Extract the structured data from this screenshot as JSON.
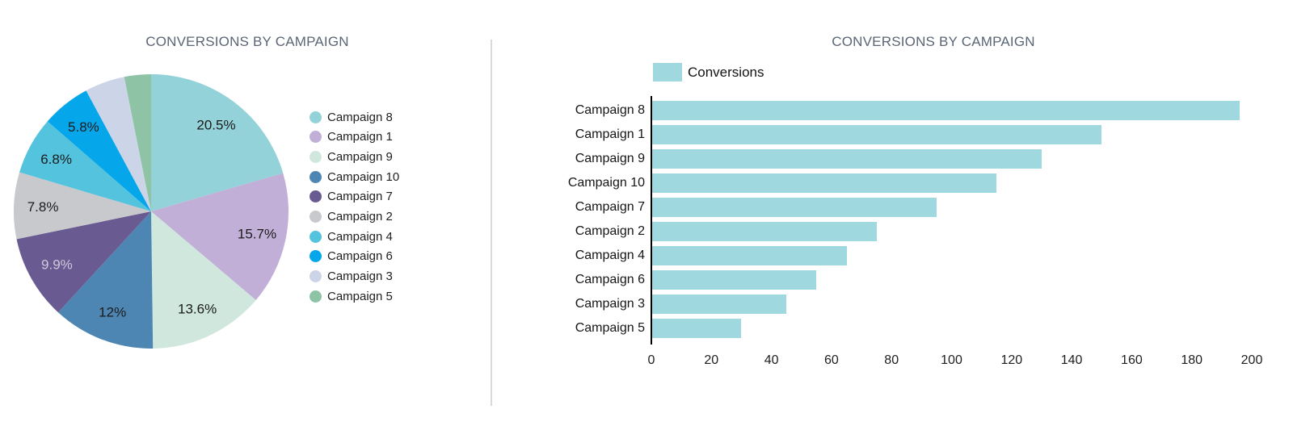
{
  "style": {
    "background": "#ffffff",
    "title_color": "#5a6575",
    "divider_color": "#d9d9d9",
    "text_color": "#1e1e1e",
    "axis_color": "#000000"
  },
  "chart_data": [
    {
      "type": "pie",
      "title": "CONVERSIONS BY CAMPAIGN",
      "categories": [
        "Campaign 8",
        "Campaign 1",
        "Campaign 9",
        "Campaign 10",
        "Campaign 7",
        "Campaign 2",
        "Campaign 4",
        "Campaign 6",
        "Campaign 3",
        "Campaign 5"
      ],
      "values": [
        196,
        150,
        130,
        115,
        95,
        75,
        65,
        55,
        45,
        30
      ],
      "percentages": [
        20.5,
        15.7,
        13.6,
        12.0,
        9.9,
        7.8,
        6.8,
        5.8,
        4.7,
        3.1
      ],
      "slice_labels": [
        "20.5%",
        "15.7%",
        "13.6%",
        "12%",
        "9.9%",
        "7.8%",
        "6.8%",
        "5.8%",
        "",
        ""
      ],
      "colors": [
        "#93d2d8",
        "#c2afd8",
        "#cfe7dc",
        "#4e86b3",
        "#6a5a92",
        "#c8c9cc",
        "#54c3dd",
        "#06a6ea",
        "#ccd4e8",
        "#8ec3a6"
      ],
      "slice_label_colors": [
        "#1b1b1b",
        "#1b1b1b",
        "#1b1b1b",
        "#1b1b1b",
        "#cfc9dc",
        "#1b1b1b",
        "#1b1b1b",
        "#1b1b1b",
        "",
        ""
      ],
      "start_angle_deg": 0,
      "direction": "clockwise",
      "legend_position": "right",
      "grid": false
    },
    {
      "type": "bar",
      "orientation": "horizontal",
      "title": "CONVERSIONS BY CAMPAIGN",
      "categories": [
        "Campaign 8",
        "Campaign 1",
        "Campaign 9",
        "Campaign 10",
        "Campaign 7",
        "Campaign 2",
        "Campaign 4",
        "Campaign 6",
        "Campaign 3",
        "Campaign 5"
      ],
      "series": [
        {
          "name": "Conversions",
          "values": [
            196,
            150,
            130,
            115,
            95,
            75,
            65,
            55,
            45,
            30
          ],
          "color": "#a0d8e0"
        }
      ],
      "xlabel": "",
      "ylabel": "",
      "xlim": [
        0,
        200
      ],
      "xticks": [
        0,
        20,
        40,
        60,
        80,
        100,
        120,
        140,
        160,
        180,
        200
      ],
      "grid": false,
      "legend_position": "top-left"
    }
  ]
}
